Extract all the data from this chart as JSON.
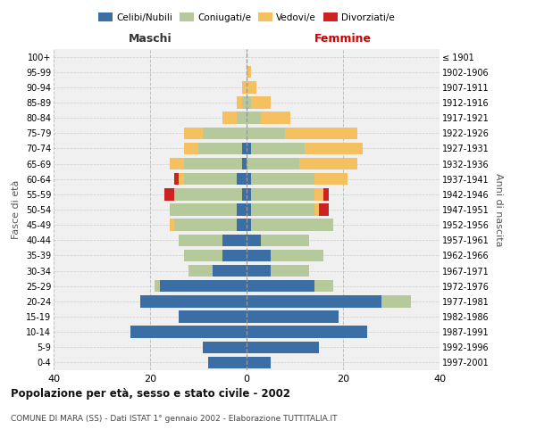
{
  "age_groups": [
    "0-4",
    "5-9",
    "10-14",
    "15-19",
    "20-24",
    "25-29",
    "30-34",
    "35-39",
    "40-44",
    "45-49",
    "50-54",
    "55-59",
    "60-64",
    "65-69",
    "70-74",
    "75-79",
    "80-84",
    "85-89",
    "90-94",
    "95-99",
    "100+"
  ],
  "birth_years": [
    "1997-2001",
    "1992-1996",
    "1987-1991",
    "1982-1986",
    "1977-1981",
    "1972-1976",
    "1967-1971",
    "1962-1966",
    "1957-1961",
    "1952-1956",
    "1947-1951",
    "1942-1946",
    "1937-1941",
    "1932-1936",
    "1927-1931",
    "1922-1926",
    "1917-1921",
    "1912-1916",
    "1907-1911",
    "1902-1906",
    "≤ 1901"
  ],
  "male": {
    "celibi": [
      8,
      9,
      24,
      14,
      22,
      18,
      7,
      5,
      5,
      2,
      2,
      1,
      2,
      1,
      1,
      0,
      0,
      0,
      0,
      0,
      0
    ],
    "coniugati": [
      0,
      0,
      0,
      0,
      0,
      1,
      5,
      8,
      9,
      13,
      14,
      14,
      11,
      12,
      9,
      9,
      2,
      1,
      0,
      0,
      0
    ],
    "vedovi": [
      0,
      0,
      0,
      0,
      0,
      0,
      0,
      0,
      0,
      1,
      0,
      0,
      1,
      3,
      3,
      4,
      3,
      1,
      1,
      0,
      0
    ],
    "divorziati": [
      0,
      0,
      0,
      0,
      0,
      0,
      0,
      0,
      0,
      0,
      0,
      2,
      1,
      0,
      0,
      0,
      0,
      0,
      0,
      0,
      0
    ]
  },
  "female": {
    "nubili": [
      5,
      15,
      25,
      19,
      28,
      14,
      5,
      5,
      3,
      1,
      1,
      1,
      1,
      0,
      1,
      0,
      0,
      0,
      0,
      0,
      0
    ],
    "coniugate": [
      0,
      0,
      0,
      0,
      6,
      4,
      8,
      11,
      10,
      17,
      13,
      13,
      13,
      11,
      11,
      8,
      3,
      1,
      0,
      0,
      0
    ],
    "vedove": [
      0,
      0,
      0,
      0,
      0,
      0,
      0,
      0,
      0,
      0,
      1,
      2,
      7,
      12,
      12,
      15,
      6,
      4,
      2,
      1,
      0
    ],
    "divorziate": [
      0,
      0,
      0,
      0,
      0,
      0,
      0,
      0,
      0,
      0,
      2,
      1,
      0,
      0,
      0,
      0,
      0,
      0,
      0,
      0,
      0
    ]
  },
  "colors": {
    "celibi": "#3a6ea5",
    "coniugati": "#b5c99a",
    "vedovi": "#f5c060",
    "divorziati": "#cc2222"
  },
  "title": "Popolazione per età, sesso e stato civile - 2002",
  "subtitle": "COMUNE DI MARA (SS) - Dati ISTAT 1° gennaio 2002 - Elaborazione TUTTITALIA.IT",
  "xlabel_left": "Maschi",
  "xlabel_right": "Femmine",
  "ylabel_left": "Fasce di età",
  "ylabel_right": "Anni di nascita",
  "xlim": 40,
  "legend_labels": [
    "Celibi/Nubili",
    "Coniugati/e",
    "Vedovi/e",
    "Divorziati/e"
  ],
  "background_color": "#ffffff",
  "grid_color": "#cccccc"
}
